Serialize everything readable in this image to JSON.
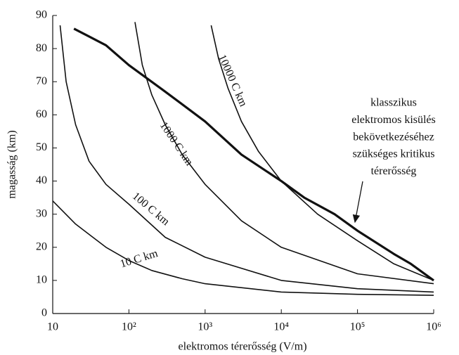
{
  "chart_data": {
    "type": "line",
    "x_label": "elektromos térerősség (V/m)",
    "y_label": "magasság (km)",
    "xlim": [
      10,
      1000000
    ],
    "ylim": [
      0,
      90
    ],
    "log_x": true,
    "xticks": [
      10,
      {
        "value": 100,
        "label": "10²"
      },
      {
        "value": 1000,
        "label": "10³"
      },
      {
        "value": 10000,
        "label": "10⁴"
      },
      {
        "value": 100000,
        "label": "10⁵"
      },
      {
        "value": 1000000,
        "label": "10⁶"
      }
    ],
    "yticks": [
      0,
      10,
      20,
      30,
      40,
      50,
      60,
      70,
      80,
      90
    ],
    "series": [
      {
        "name": "10 C km",
        "color": "#111111",
        "x": [
          10,
          20,
          50,
          100,
          200,
          500,
          1000,
          10000,
          100000,
          1000000
        ],
        "values": [
          34,
          27,
          20,
          16,
          13,
          10.5,
          9,
          6.5,
          5.8,
          5.5
        ]
      },
      {
        "name": "100 C km",
        "color": "#111111",
        "x": [
          12.5,
          15,
          20,
          30,
          50,
          100,
          300,
          1000,
          10000,
          100000,
          1000000
        ],
        "values": [
          87,
          70,
          57,
          46,
          39,
          33,
          23,
          17,
          10,
          7.5,
          6.5
        ]
      },
      {
        "name": "1000 C km",
        "color": "#111111",
        "x": [
          120,
          150,
          200,
          300,
          500,
          1000,
          3000,
          10000,
          100000,
          1000000
        ],
        "values": [
          88,
          75,
          66,
          57,
          48,
          39,
          28,
          20,
          12,
          9
        ]
      },
      {
        "name": "10000 C km",
        "color": "#111111",
        "x": [
          1200,
          1500,
          2000,
          3000,
          5000,
          10000,
          30000,
          100000,
          300000,
          1000000
        ],
        "values": [
          87,
          77,
          68,
          58,
          49,
          40,
          30,
          22,
          15,
          10
        ]
      },
      {
        "color": "#111111",
        "thick": true,
        "x": [
          19,
          50,
          100,
          300,
          1000,
          3000,
          10000,
          20000,
          50000,
          100000,
          300000,
          500000,
          1000000
        ],
        "values": [
          86,
          81,
          75,
          67,
          58,
          48,
          40,
          35,
          30,
          25,
          18,
          15,
          10
        ]
      }
    ],
    "annotation": {
      "lines": [
        "klasszikus",
        "elektromos kisülés",
        "bekövetkezéséhez",
        "szükséges kritikus",
        "térerősség"
      ]
    }
  }
}
